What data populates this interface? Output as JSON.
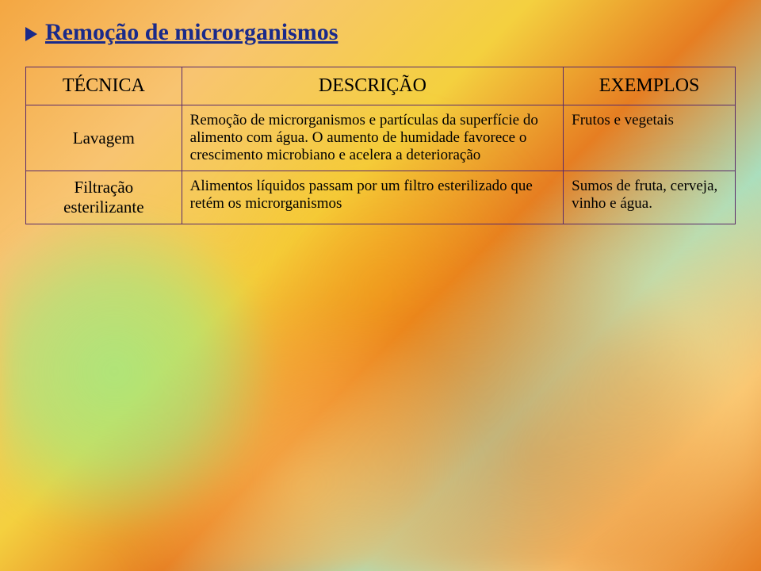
{
  "title": "Remoção de microrganismos",
  "headers": {
    "col1": "TÉCNICA",
    "col2": "DESCRIÇÃO",
    "col3": "EXEMPLOS"
  },
  "rows": [
    {
      "tecnica": "Lavagem",
      "descricao": "Remoção de microrganismos e partículas da superfície do alimento com água. O aumento de humidade favorece o crescimento microbiano e acelera a deterioração",
      "exemplos": "Frutos e vegetais"
    },
    {
      "tecnica": "Filtração esterilizante",
      "descricao": "Alimentos líquidos passam por um filtro esterilizado que retém os microrganismos",
      "exemplos": "Sumos de fruta, cerveja, vinho e água."
    }
  ],
  "colors": {
    "title_color": "#1a2a8a",
    "border_color": "#5a2a6a",
    "text_color": "#000000"
  },
  "typography": {
    "title_fontsize": 30,
    "header_fontsize": 24,
    "tech_fontsize": 21,
    "cell_fontsize": 19,
    "font_family": "Georgia, serif"
  },
  "layout": {
    "col1_width": 180,
    "col2_width": 480,
    "col3_width": 200,
    "padding": "24px 32px"
  }
}
